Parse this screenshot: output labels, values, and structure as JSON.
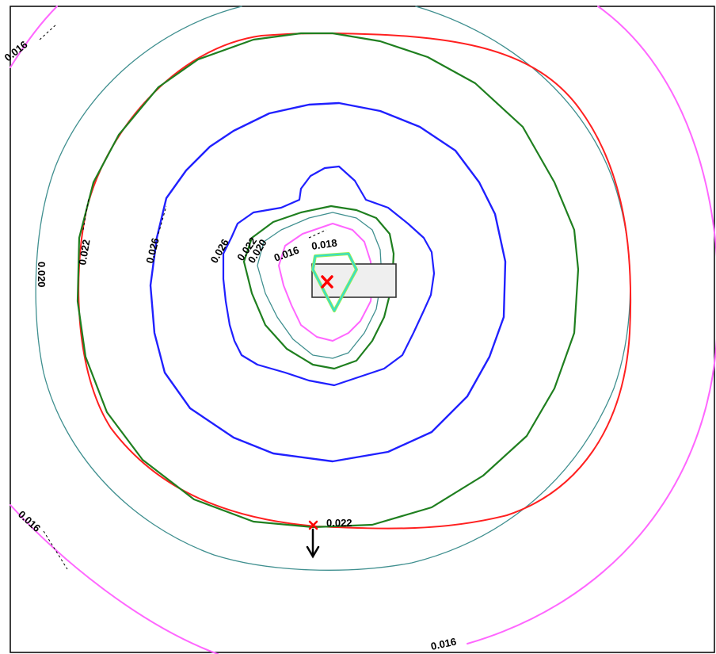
{
  "contour_plot": {
    "colors": {
      "frame": "#000000",
      "teal": "#3f8f8f",
      "magenta": "#ff66ff",
      "red": "#ff2020",
      "green": "#1f7f1f",
      "blue": "#2020ff",
      "cyan": "#33ddcc",
      "lime": "#99ee55",
      "source_fill": "#efefef",
      "marker": "#ff0000"
    },
    "labels": {
      "top_left": "0.016",
      "left_022": "0.022",
      "left_020": "0.020",
      "blue_outer": "0.026",
      "blue_inner": "0.026",
      "inner_022": "0.022",
      "inner_020": "0.020",
      "inner_016": "0.016",
      "inner_stack": "0.018",
      "bottom_left": "0.016",
      "bottom_center": "0.022",
      "bottom_right": "0.016"
    },
    "icons": {
      "source_marker": "x-mark-icon",
      "receptor_marker": "x-mark-icon",
      "wind_direction": "arrow-down-icon"
    }
  }
}
